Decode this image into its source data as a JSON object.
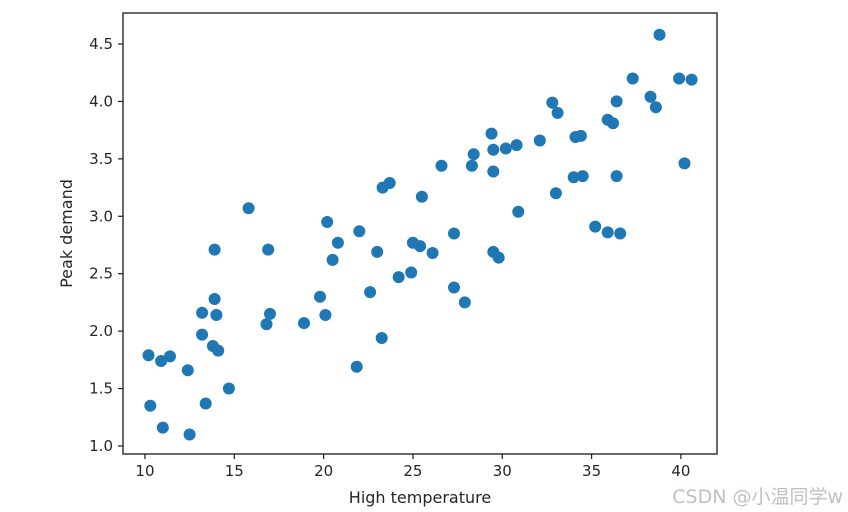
{
  "chart_data": {
    "type": "scatter",
    "title": "",
    "xlabel": "High temperature",
    "ylabel": "Peak demand",
    "xlim": [
      8.77,
      42.02
    ],
    "ylim": [
      0.93,
      4.77
    ],
    "x_ticks": [
      10,
      15,
      20,
      25,
      30,
      35,
      40
    ],
    "x_tick_labels": [
      "10",
      "15",
      "20",
      "25",
      "30",
      "35",
      "40"
    ],
    "y_ticks": [
      1.0,
      1.5,
      2.0,
      2.5,
      3.0,
      3.5,
      4.0,
      4.5
    ],
    "y_tick_labels": [
      "1.0",
      "1.5",
      "2.0",
      "2.5",
      "3.0",
      "3.5",
      "4.0",
      "4.5"
    ],
    "grid": false,
    "legend": null,
    "marker_color": "#1f77b4",
    "axis_color": "#1a1a1a",
    "text_color": "#262626",
    "points": [
      [
        38.8,
        4.58
      ],
      [
        37.3,
        4.2
      ],
      [
        39.9,
        4.2
      ],
      [
        40.6,
        4.19
      ],
      [
        38.3,
        4.04
      ],
      [
        38.6,
        3.95
      ],
      [
        36.4,
        4.0
      ],
      [
        32.8,
        3.99
      ],
      [
        33.1,
        3.9
      ],
      [
        35.9,
        3.84
      ],
      [
        36.2,
        3.81
      ],
      [
        34.1,
        3.69
      ],
      [
        34.4,
        3.7
      ],
      [
        32.1,
        3.66
      ],
      [
        30.8,
        3.62
      ],
      [
        29.4,
        3.72
      ],
      [
        29.5,
        3.58
      ],
      [
        30.2,
        3.59
      ],
      [
        28.4,
        3.54
      ],
      [
        28.3,
        3.44
      ],
      [
        29.5,
        3.39
      ],
      [
        26.6,
        3.44
      ],
      [
        40.2,
        3.46
      ],
      [
        34.0,
        3.34
      ],
      [
        34.5,
        3.35
      ],
      [
        36.4,
        3.35
      ],
      [
        33.0,
        3.2
      ],
      [
        30.9,
        3.04
      ],
      [
        35.2,
        2.91
      ],
      [
        35.9,
        2.86
      ],
      [
        36.6,
        2.85
      ],
      [
        23.3,
        3.25
      ],
      [
        23.7,
        3.29
      ],
      [
        25.5,
        3.17
      ],
      [
        20.2,
        2.95
      ],
      [
        22.0,
        2.87
      ],
      [
        27.3,
        2.85
      ],
      [
        20.8,
        2.77
      ],
      [
        25.0,
        2.77
      ],
      [
        25.4,
        2.74
      ],
      [
        23.0,
        2.69
      ],
      [
        26.1,
        2.68
      ],
      [
        20.5,
        2.62
      ],
      [
        29.5,
        2.69
      ],
      [
        29.8,
        2.64
      ],
      [
        24.2,
        2.47
      ],
      [
        24.9,
        2.51
      ],
      [
        27.3,
        2.38
      ],
      [
        27.9,
        2.25
      ],
      [
        22.6,
        2.34
      ],
      [
        19.8,
        2.3
      ],
      [
        15.8,
        3.07
      ],
      [
        13.9,
        2.71
      ],
      [
        16.9,
        2.71
      ],
      [
        13.9,
        2.28
      ],
      [
        13.2,
        2.16
      ],
      [
        14.0,
        2.14
      ],
      [
        17.0,
        2.15
      ],
      [
        16.8,
        2.06
      ],
      [
        18.9,
        2.07
      ],
      [
        20.1,
        2.14
      ],
      [
        13.2,
        1.97
      ],
      [
        13.8,
        1.87
      ],
      [
        14.1,
        1.83
      ],
      [
        12.4,
        1.66
      ],
      [
        14.7,
        1.5
      ],
      [
        13.4,
        1.37
      ],
      [
        10.3,
        1.35
      ],
      [
        11.0,
        1.16
      ],
      [
        12.5,
        1.1
      ],
      [
        10.2,
        1.79
      ],
      [
        10.9,
        1.74
      ],
      [
        11.4,
        1.78
      ],
      [
        23.25,
        1.94
      ],
      [
        21.85,
        1.69
      ]
    ]
  },
  "watermark": {
    "text": "CSDN @小温同学w",
    "color": "#c6bdbe"
  }
}
